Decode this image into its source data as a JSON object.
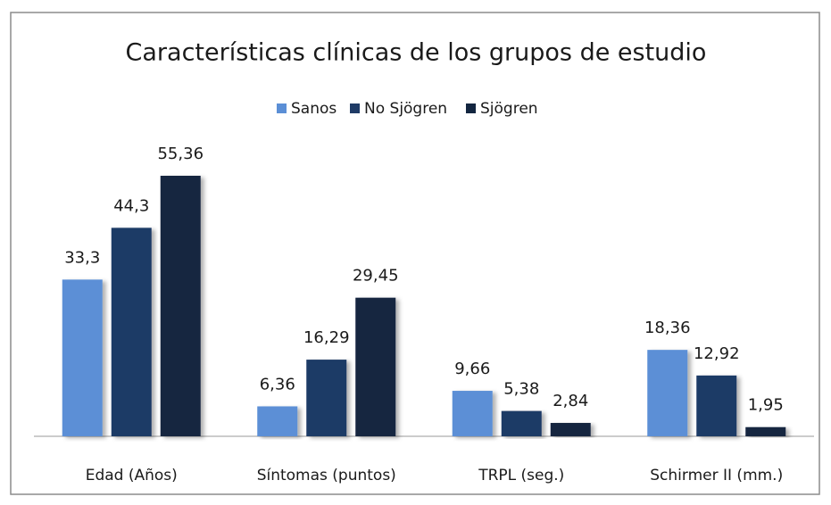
{
  "chart_data": {
    "type": "bar",
    "title": "Características clínicas de los grupos de estudio",
    "categories": [
      "Edad (Años)",
      "Síntomas (puntos)",
      "TRPL (seg.)",
      "Schirmer II (mm.)"
    ],
    "series": [
      {
        "name": "Sanos",
        "color": "#5b8fd6",
        "values": [
          33.3,
          6.36,
          9.66,
          18.36
        ],
        "value_labels": [
          "33,3",
          "6,36",
          "9,66",
          "18,36"
        ]
      },
      {
        "name": "No Sjögren",
        "color": "#1f3b66",
        "values": [
          44.3,
          16.29,
          5.38,
          12.92
        ],
        "value_labels": [
          "44,3",
          "16,29",
          "5,38",
          "12,92"
        ]
      },
      {
        "name": "Sjögren",
        "color": "#132640",
        "values": [
          55.36,
          29.45,
          2.84,
          1.95
        ],
        "value_labels": [
          "55,36",
          "29,45",
          "2,84",
          "1,95"
        ]
      }
    ],
    "legend": "top"
  }
}
